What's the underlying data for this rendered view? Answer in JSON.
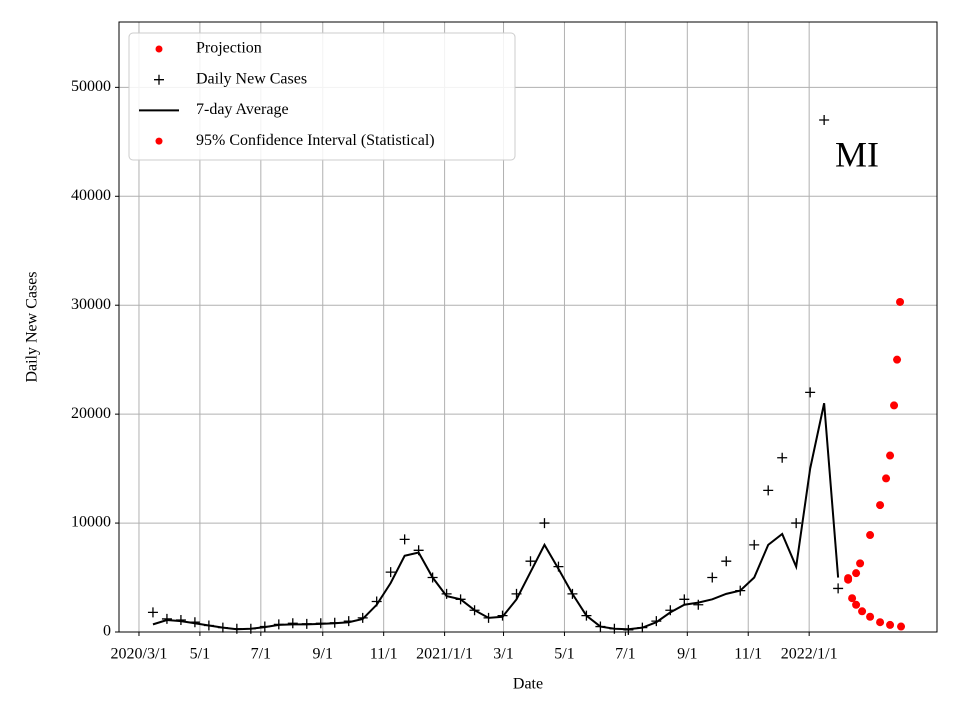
{
  "chart_data": {
    "type": "scatter",
    "annotation": "MI",
    "xlabel": "Date",
    "ylabel": "Daily New Cases",
    "xlim": [
      "2020-02-10",
      "2022-05-09"
    ],
    "ylim": [
      0,
      56000
    ],
    "xticks": [
      {
        "value": "2020-03-01",
        "label": "2020/3/1"
      },
      {
        "value": "2020-05-01",
        "label": "5/1"
      },
      {
        "value": "2020-07-01",
        "label": "7/1"
      },
      {
        "value": "2020-09-01",
        "label": "9/1"
      },
      {
        "value": "2020-11-01",
        "label": "11/1"
      },
      {
        "value": "2021-01-01",
        "label": "2021/1/1"
      },
      {
        "value": "2021-03-01",
        "label": "3/1"
      },
      {
        "value": "2021-05-01",
        "label": "5/1"
      },
      {
        "value": "2021-07-01",
        "label": "7/1"
      },
      {
        "value": "2021-09-01",
        "label": "9/1"
      },
      {
        "value": "2021-11-01",
        "label": "11/1"
      },
      {
        "value": "2022-01-01",
        "label": "2022/1/1"
      }
    ],
    "yticks": [
      0,
      10000,
      20000,
      30000,
      40000,
      50000
    ],
    "grid": true,
    "legend": "upper left",
    "series": [
      {
        "name": "Projection",
        "color": "#ff0000",
        "marker": "dot",
        "x": [
          "2022-02-09",
          "2022-02-13",
          "2022-02-17",
          "2022-02-23",
          "2022-03-03",
          "2022-03-13",
          "2022-03-23",
          "2022-04-03"
        ],
        "values": [
          4800,
          3100,
          2500,
          1900,
          1400,
          900,
          650,
          500
        ]
      },
      {
        "name": "Daily New Cases",
        "color": "#000000",
        "marker": "plus",
        "x": [
          "2020-03-15",
          "2020-03-29",
          "2020-04-12",
          "2020-04-26",
          "2020-05-10",
          "2020-05-24",
          "2020-06-07",
          "2020-06-21",
          "2020-07-05",
          "2020-07-19",
          "2020-08-02",
          "2020-08-16",
          "2020-08-30",
          "2020-09-13",
          "2020-09-27",
          "2020-10-11",
          "2020-10-25",
          "2020-11-08",
          "2020-11-22",
          "2020-12-06",
          "2020-12-20",
          "2021-01-03",
          "2021-01-17",
          "2021-01-31",
          "2021-02-14",
          "2021-02-28",
          "2021-03-14",
          "2021-03-28",
          "2021-04-11",
          "2021-04-25",
          "2021-05-09",
          "2021-05-23",
          "2021-06-06",
          "2021-06-20",
          "2021-07-04",
          "2021-07-18",
          "2021-08-01",
          "2021-08-15",
          "2021-08-29",
          "2021-09-12",
          "2021-09-26",
          "2021-10-10",
          "2021-10-24",
          "2021-11-07",
          "2021-11-21",
          "2021-12-05",
          "2021-12-19",
          "2022-01-02",
          "2022-01-16",
          "2022-01-30"
        ],
        "values": [
          1800,
          1200,
          1100,
          900,
          600,
          400,
          300,
          300,
          500,
          700,
          800,
          750,
          800,
          850,
          1000,
          1300,
          2800,
          5500,
          8500,
          7500,
          5000,
          3500,
          3000,
          2000,
          1300,
          1500,
          3500,
          6500,
          10000,
          6000,
          3500,
          1500,
          500,
          300,
          200,
          400,
          1000,
          2000,
          3000,
          2500,
          5000,
          6500,
          3800,
          8000,
          13000,
          16000,
          10000,
          22000,
          47000,
          4000
        ]
      },
      {
        "name": "7-day Average",
        "color": "#000000",
        "marker": "line",
        "x": [
          "2020-03-15",
          "2020-03-29",
          "2020-04-12",
          "2020-04-26",
          "2020-05-10",
          "2020-05-24",
          "2020-06-07",
          "2020-06-21",
          "2020-07-05",
          "2020-07-19",
          "2020-08-02",
          "2020-08-16",
          "2020-08-30",
          "2020-09-13",
          "2020-09-27",
          "2020-10-11",
          "2020-10-25",
          "2020-11-08",
          "2020-11-22",
          "2020-12-06",
          "2020-12-20",
          "2021-01-03",
          "2021-01-17",
          "2021-01-31",
          "2021-02-14",
          "2021-02-28",
          "2021-03-14",
          "2021-03-28",
          "2021-04-11",
          "2021-04-25",
          "2021-05-09",
          "2021-05-23",
          "2021-06-06",
          "2021-06-20",
          "2021-07-04",
          "2021-07-18",
          "2021-08-01",
          "2021-08-15",
          "2021-08-29",
          "2021-09-12",
          "2021-09-26",
          "2021-10-10",
          "2021-10-24",
          "2021-11-07",
          "2021-11-21",
          "2021-12-05",
          "2021-12-19",
          "2022-01-02",
          "2022-01-16",
          "2022-01-30"
        ],
        "values": [
          700,
          1100,
          1000,
          800,
          600,
          400,
          250,
          300,
          450,
          650,
          700,
          700,
          750,
          800,
          900,
          1200,
          2500,
          4500,
          7000,
          7300,
          5000,
          3300,
          3000,
          2000,
          1300,
          1400,
          3000,
          5500,
          8000,
          5800,
          3500,
          1500,
          500,
          300,
          250,
          400,
          900,
          1800,
          2500,
          2700,
          3000,
          3500,
          3800,
          5000,
          8000,
          9000,
          6000,
          15000,
          21000,
          5000
        ]
      },
      {
        "name": "95% Confidence Interval (Statistical)",
        "color": "#ff0000",
        "marker": "dot",
        "x": [
          "2022-02-09",
          "2022-02-17",
          "2022-02-21",
          "2022-03-03",
          "2022-03-13",
          "2022-03-19",
          "2022-03-23",
          "2022-03-27",
          "2022-03-30",
          "2022-04-02"
        ],
        "values": [
          4950,
          5400,
          6300,
          8900,
          11650,
          14100,
          16200,
          20800,
          25000,
          30300
        ]
      }
    ]
  }
}
